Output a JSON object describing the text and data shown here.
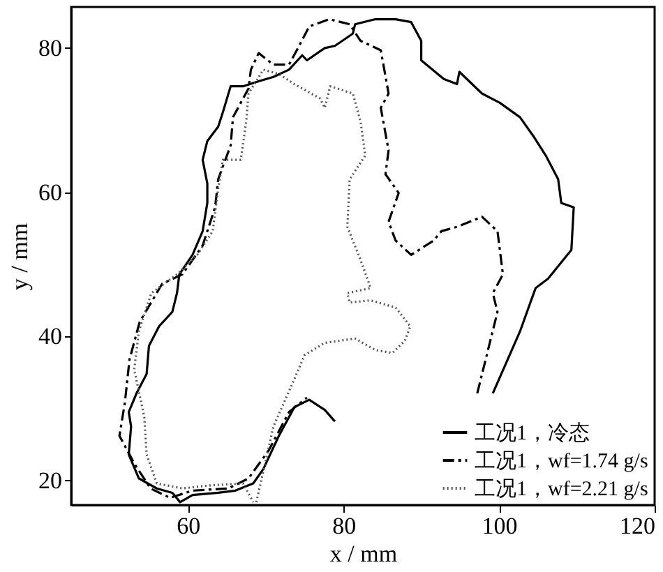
{
  "chart_data": {
    "type": "line",
    "xlabel": "x / mm",
    "ylabel": "y / mm",
    "xlim": [
      45,
      120
    ],
    "ylim": [
      16.6,
      85.7
    ],
    "xticks": [
      60,
      80,
      100,
      120
    ],
    "yticks": [
      20,
      40,
      60,
      80
    ],
    "grid": false,
    "legend": "bottom right",
    "marker": "none",
    "series": [
      {
        "name": "工况1，冷态",
        "color": "#000000",
        "line_style": "solid",
        "x": [
          99.2,
          102.7,
          104.7,
          106.3,
          109.3,
          109.6,
          108,
          107.6,
          106,
          104.4,
          102.7,
          100.1,
          97.8,
          94.9,
          94.6,
          92.9,
          90,
          90,
          88.7,
          86.7,
          84.1,
          81.5,
          81.2,
          78.9,
          77.6,
          75.3,
          74.7,
          73,
          71,
          69.1,
          67.1,
          65.5,
          64.5,
          63.9,
          62.5,
          61.9,
          62.5,
          62.5,
          61.9,
          60.6,
          58.9,
          58.6,
          58,
          56.3,
          55,
          54.7,
          53.4,
          52.4,
          52.7,
          52.4,
          53.7,
          56,
          58,
          59,
          60.6,
          63.9,
          66.1,
          68.4,
          69.7,
          71.7,
          73.7,
          75.6,
          77.6,
          78.9
        ],
        "values": [
          32.1,
          40.7,
          46.7,
          48,
          52,
          57.9,
          58.5,
          61.8,
          65.1,
          67.8,
          70.4,
          72.4,
          73.7,
          76.7,
          75,
          75.7,
          78.3,
          81,
          83.6,
          84,
          84,
          83.3,
          82,
          80.3,
          80,
          78.3,
          79,
          77,
          76,
          75.4,
          74.7,
          74.7,
          71.1,
          69.1,
          67.1,
          64.5,
          61.2,
          58.5,
          54.6,
          51.3,
          48.6,
          46,
          43.4,
          41.4,
          38.7,
          34.8,
          32.1,
          29.5,
          27.5,
          23.6,
          20.3,
          18.9,
          18.3,
          17,
          18,
          18.3,
          18.6,
          19.6,
          21.6,
          26.2,
          30.2,
          31.2,
          29.8,
          28.2
        ]
      },
      {
        "name": "工况1，wf=1.74 g/s",
        "color": "#000000",
        "line_style": "dashed",
        "x": [
          97.2,
          99.8,
          99.2,
          100.5,
          99.8,
          97.8,
          94.6,
          92.6,
          91.6,
          88.7,
          86.7,
          85.8,
          87.1,
          85.4,
          85.8,
          84.8,
          85.8,
          84.8,
          82.2,
          80.8,
          78.2,
          75.6,
          74.3,
          73,
          71,
          69.1,
          68.1,
          67.8,
          65.8,
          65.5,
          63.9,
          63.5,
          61.9,
          59.3,
          56.7,
          53.8,
          52.5,
          51.9,
          51.2,
          53.2,
          55.2,
          57.7,
          60.6,
          65.2,
          67.8,
          70.4,
          73,
          75.3
        ],
        "values": [
          32.1,
          43.4,
          46,
          48.6,
          54.6,
          56.6,
          55.2,
          54.6,
          53.3,
          51.3,
          53.3,
          55.9,
          59.9,
          62.5,
          65.8,
          71.7,
          73.7,
          79.7,
          81,
          83.3,
          84,
          83,
          80.3,
          77.7,
          77.7,
          79.3,
          77,
          74.4,
          70.4,
          66.5,
          61.8,
          57.9,
          52.6,
          48.6,
          47.3,
          42,
          36.8,
          30.8,
          26.2,
          22.2,
          18.9,
          17.6,
          18.6,
          18.9,
          20.3,
          24.2,
          29.5,
          31.5
        ]
      },
      {
        "name": "工况1，wf=2.21 g/s",
        "color": "#555555",
        "line_style": "dotted",
        "x": [
          68.8,
          71,
          73.7,
          75,
          77.6,
          81.5,
          84.1,
          86.3,
          87.9,
          88.6,
          86.7,
          83.5,
          80.8,
          80.5,
          83.5,
          82.2,
          80.5,
          80.8,
          82.8,
          82.2,
          81.2,
          78.3,
          77.6,
          77,
          73.7,
          71.7,
          69.7,
          67.8,
          67.5,
          66.8,
          64.5,
          63.9,
          63.2,
          61.2,
          58.6,
          55.3,
          53.7,
          53.1,
          54.4,
          54.7,
          56,
          59.3,
          62.5,
          67.1,
          68.4
        ],
        "values": [
          17,
          27.5,
          34.1,
          37.4,
          39.1,
          39.7,
          38.1,
          37.7,
          39.4,
          41.4,
          44,
          45,
          44.7,
          46,
          46.7,
          50.6,
          55.2,
          61.8,
          65.1,
          69.8,
          73.7,
          74.7,
          71.7,
          73,
          75,
          76.4,
          77,
          73.7,
          69.8,
          64.5,
          64.5,
          60.5,
          54.6,
          51.3,
          48.6,
          46,
          40.7,
          35.4,
          28.8,
          23.6,
          19.6,
          18.9,
          19.3,
          19.6,
          17
        ]
      }
    ]
  }
}
